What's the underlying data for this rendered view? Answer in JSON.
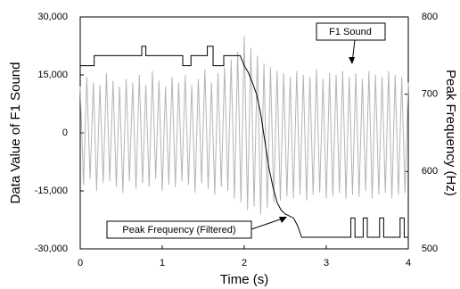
{
  "chart_data": {
    "type": "line",
    "x_label": "Time (s)",
    "y_label": "Data Value of F1 Sound",
    "y2_label": "Peak Frequency (Hz)",
    "xlim": [
      0,
      4
    ],
    "xticks": [
      0,
      1,
      2,
      3,
      4
    ],
    "ylim": [
      -30000,
      30000
    ],
    "yticks": [
      {
        "value": -30000,
        "label": "-30,000"
      },
      {
        "value": -15000,
        "label": "-15,000"
      },
      0,
      {
        "value": 15000,
        "label": "15,000"
      },
      {
        "value": 30000,
        "label": "30,000"
      }
    ],
    "y2lim": [
      500,
      800
    ],
    "y2ticks": [
      500,
      600,
      700,
      800
    ],
    "annotations": [
      "F1 Sound",
      "Peak Frequency (Filtered)"
    ],
    "series": [
      {
        "color": "#b5b5b5",
        "x": [
          0,
          0.04,
          0.08,
          0.12,
          0.16,
          0.2,
          0.24,
          0.28,
          0.32,
          0.36,
          0.4,
          0.44,
          0.48,
          0.52,
          0.56,
          0.6,
          0.64,
          0.68,
          0.72,
          0.76,
          0.8,
          0.84,
          0.88,
          0.92,
          0.96,
          1,
          1.04,
          1.08,
          1.12,
          1.16,
          1.2,
          1.24,
          1.28,
          1.32,
          1.36,
          1.4,
          1.44,
          1.48,
          1.52,
          1.56,
          1.6,
          1.64,
          1.68,
          1.72,
          1.76,
          1.8,
          1.84,
          1.88,
          1.92,
          1.96,
          2,
          2.04,
          2.08,
          2.12,
          2.16,
          2.2,
          2.24,
          2.28,
          2.32,
          2.36,
          2.4,
          2.44,
          2.48,
          2.52,
          2.56,
          2.6,
          2.64,
          2.68,
          2.72,
          2.76,
          2.8,
          2.84,
          2.88,
          2.92,
          2.96,
          3,
          3.04,
          3.08,
          3.12,
          3.16,
          3.2,
          3.24,
          3.28,
          3.32,
          3.36,
          3.4,
          3.44,
          3.48,
          3.52,
          3.56,
          3.6,
          3.64,
          3.68,
          3.72,
          3.76,
          3.8,
          3.84,
          3.88,
          3.92,
          3.96,
          4
        ],
        "values": [
          12000,
          -13500,
          14500,
          -12000,
          13000,
          -15000,
          12500,
          -13000,
          15500,
          -12500,
          13500,
          -14000,
          12000,
          -15500,
          14000,
          -12500,
          13000,
          -14500,
          15000,
          -13000,
          12500,
          -14000,
          16000,
          -12000,
          13500,
          -15000,
          12000,
          -13500,
          14500,
          -14000,
          13000,
          -12500,
          15000,
          -13500,
          12500,
          -15500,
          14000,
          -13000,
          16500,
          -14500,
          13000,
          -16000,
          15500,
          -14000,
          17000,
          -15000,
          19000,
          -17000,
          21000,
          -18000,
          25000,
          -20000,
          22000,
          -19000,
          20000,
          -21000,
          18000,
          -19500,
          17000,
          -18000,
          16000,
          -17500,
          15500,
          -16500,
          14500,
          -17000,
          16000,
          -16000,
          15000,
          -17500,
          14500,
          -16000,
          16500,
          -15500,
          14000,
          -17000,
          15500,
          -16500,
          15000,
          -15500,
          16000,
          -17000,
          14500,
          -16000,
          15500,
          -16500,
          14000,
          -15000,
          16000,
          -17000,
          15000,
          -16000,
          14500,
          -15500,
          16000,
          -17000,
          15000,
          -16000,
          14500,
          -15500,
          13000
        ]
      },
      {
        "color": "#000000",
        "axis": "y2",
        "x": [
          0,
          0.17,
          0.17,
          0.75,
          0.75,
          0.8,
          0.8,
          1.25,
          1.25,
          1.35,
          1.35,
          1.55,
          1.55,
          1.62,
          1.62,
          1.75,
          1.75,
          1.95,
          2.0,
          2.05,
          2.1,
          2.15,
          2.2,
          2.25,
          2.3,
          2.35,
          2.4,
          2.45,
          2.5,
          2.6,
          2.65,
          2.7,
          3.3,
          3.3,
          3.35,
          3.35,
          3.45,
          3.45,
          3.5,
          3.5,
          3.65,
          3.65,
          3.7,
          3.7,
          3.9,
          3.9,
          3.95,
          3.95,
          4
        ],
        "values": [
          737,
          737,
          750,
          750,
          762,
          762,
          750,
          750,
          737,
          737,
          750,
          750,
          762,
          762,
          737,
          737,
          750,
          750,
          737,
          728,
          715,
          700,
          675,
          640,
          605,
          580,
          560,
          550,
          545,
          540,
          530,
          515,
          515,
          540,
          540,
          515,
          515,
          540,
          540,
          515,
          515,
          540,
          540,
          515,
          515,
          540,
          540,
          515,
          515
        ]
      }
    ]
  }
}
